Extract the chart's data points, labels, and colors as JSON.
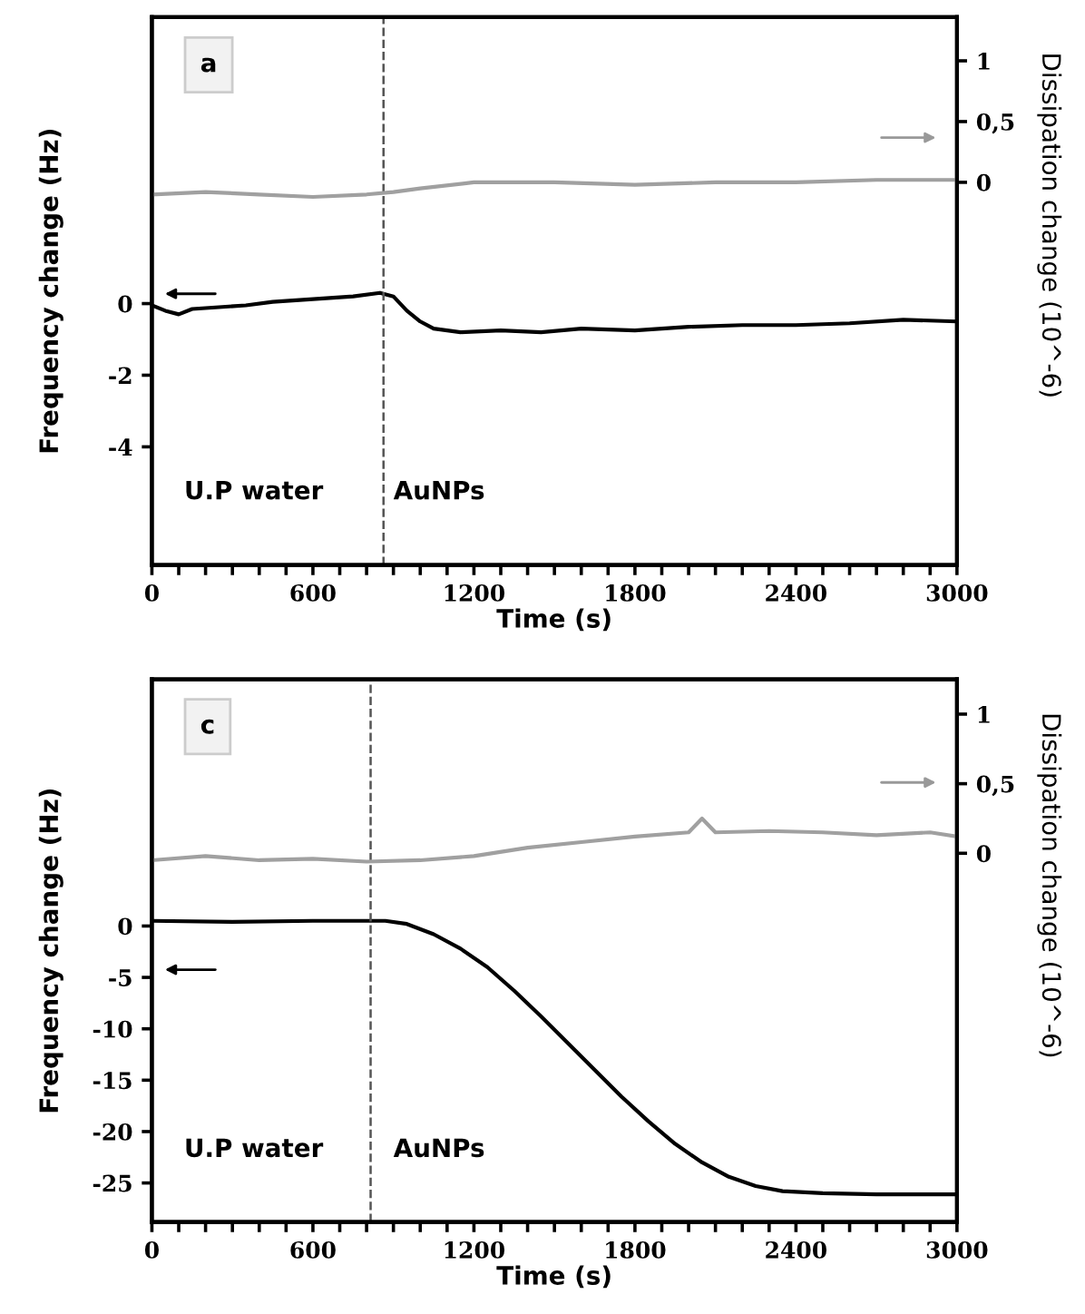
{
  "chart_data": [
    {
      "type": "line",
      "xlabel": "Time (s)",
      "ylabel": "Frequency change (Hz)",
      "y2label": "Dissipation change (10^-6)",
      "annotations": [
        "a",
        "U.P water",
        "AuNPs"
      ],
      "ref_lines": [
        {
          "axis": "x",
          "value": 863,
          "color": "#555555",
          "line_style": "dashed"
        }
      ],
      "xlim": [
        0,
        3000
      ],
      "xticks": [
        0,
        {
          "value": 100,
          "label": null
        },
        {
          "value": 200,
          "label": null
        },
        {
          "value": 300,
          "label": null
        },
        {
          "value": 400,
          "label": null
        },
        {
          "value": 500,
          "label": null
        },
        600,
        {
          "value": 700,
          "label": null
        },
        {
          "value": 800,
          "label": null
        },
        {
          "value": 900,
          "label": null
        },
        {
          "value": 1000,
          "label": null
        },
        {
          "value": 1100,
          "label": null
        },
        1200,
        {
          "value": 1300,
          "label": null
        },
        {
          "value": 1400,
          "label": null
        },
        {
          "value": 1500,
          "label": null
        },
        {
          "value": 1600,
          "label": null
        },
        {
          "value": 1700,
          "label": null
        },
        1800,
        {
          "value": 1900,
          "label": null
        },
        {
          "value": 2000,
          "label": null
        },
        {
          "value": 2100,
          "label": null
        },
        {
          "value": 2200,
          "label": null
        },
        {
          "value": 2300,
          "label": null
        },
        2400,
        {
          "value": 2500,
          "label": null
        },
        {
          "value": 2600,
          "label": null
        },
        {
          "value": 2700,
          "label": null
        },
        {
          "value": 2800,
          "label": null
        },
        {
          "value": 2900,
          "label": null
        },
        3000
      ],
      "ylim": [
        -7.3,
        8.0
      ],
      "yticks": [
        -4,
        -2,
        0
      ],
      "y2lim": [
        -3.15,
        1.36
      ],
      "y2ticks": [
        0,
        {
          "value": 0.5,
          "label": "0,5"
        },
        1
      ],
      "series": [
        {
          "color": "#000000",
          "x": [
            0,
            50,
            100,
            150,
            250,
            350,
            450,
            550,
            650,
            750,
            850,
            900,
            950,
            1000,
            1050,
            1150,
            1300,
            1450,
            1600,
            1800,
            2000,
            2200,
            2400,
            2600,
            2800,
            3000
          ],
          "values": [
            -0.05,
            -0.2,
            -0.3,
            -0.15,
            -0.1,
            -0.05,
            0.05,
            0.1,
            0.15,
            0.2,
            0.3,
            0.2,
            -0.2,
            -0.5,
            -0.7,
            -0.8,
            -0.75,
            -0.8,
            -0.7,
            -0.75,
            -0.65,
            -0.6,
            -0.6,
            -0.55,
            -0.45,
            -0.5
          ]
        },
        {
          "color": "#a0a0a0",
          "axis": "y2",
          "x": [
            0,
            200,
            400,
            600,
            800,
            900,
            1000,
            1200,
            1500,
            1800,
            2100,
            2400,
            2700,
            3000
          ],
          "values": [
            -0.1,
            -0.08,
            -0.1,
            -0.12,
            -0.1,
            -0.08,
            -0.05,
            0,
            0,
            -0.02,
            0,
            0,
            0.02,
            0.02
          ]
        }
      ]
    },
    {
      "type": "line",
      "xlabel": "Time (s)",
      "ylabel": "Frequency change (Hz)",
      "y2label": "Dissipation change (10^-6)",
      "annotations": [
        "c",
        "U.P water",
        "AuNPs"
      ],
      "ref_lines": [
        {
          "axis": "x",
          "value": 815,
          "color": "#555555",
          "line_style": "dashed"
        }
      ],
      "xlim": [
        0,
        3000
      ],
      "xticks": [
        0,
        {
          "value": 100,
          "label": null
        },
        {
          "value": 200,
          "label": null
        },
        {
          "value": 300,
          "label": null
        },
        {
          "value": 400,
          "label": null
        },
        {
          "value": 500,
          "label": null
        },
        600,
        {
          "value": 700,
          "label": null
        },
        {
          "value": 800,
          "label": null
        },
        {
          "value": 900,
          "label": null
        },
        {
          "value": 1000,
          "label": null
        },
        {
          "value": 1100,
          "label": null
        },
        1200,
        {
          "value": 1300,
          "label": null
        },
        {
          "value": 1400,
          "label": null
        },
        {
          "value": 1500,
          "label": null
        },
        {
          "value": 1600,
          "label": null
        },
        {
          "value": 1700,
          "label": null
        },
        1800,
        {
          "value": 1900,
          "label": null
        },
        {
          "value": 2000,
          "label": null
        },
        {
          "value": 2100,
          "label": null
        },
        {
          "value": 2200,
          "label": null
        },
        {
          "value": 2300,
          "label": null
        },
        2400,
        {
          "value": 2500,
          "label": null
        },
        {
          "value": 2600,
          "label": null
        },
        {
          "value": 2700,
          "label": null
        },
        {
          "value": 2800,
          "label": null
        },
        {
          "value": 2900,
          "label": null
        },
        3000
      ],
      "ylim": [
        -28.8,
        24.0
      ],
      "yticks": [
        -25,
        -20,
        -15,
        -10,
        -5,
        0
      ],
      "y2lim": [
        -2.65,
        1.25
      ],
      "y2ticks": [
        0,
        {
          "value": 0.5,
          "label": "0,5"
        },
        1
      ],
      "series": [
        {
          "color": "#000000",
          "x": [
            0,
            300,
            600,
            870,
            950,
            1050,
            1150,
            1250,
            1350,
            1450,
            1550,
            1650,
            1750,
            1850,
            1950,
            2050,
            2150,
            2250,
            2350,
            2500,
            2700,
            3000
          ],
          "values": [
            0.5,
            0.4,
            0.5,
            0.5,
            0.2,
            -0.8,
            -2.2,
            -4,
            -6.3,
            -8.8,
            -11.4,
            -14,
            -16.6,
            -19,
            -21.2,
            -23,
            -24.4,
            -25.3,
            -25.8,
            -26.0,
            -26.1,
            -26.1
          ]
        },
        {
          "color": "#a0a0a0",
          "axis": "y2",
          "x": [
            0,
            200,
            400,
            600,
            800,
            1000,
            1200,
            1400,
            1600,
            1800,
            2000,
            2050,
            2100,
            2300,
            2500,
            2700,
            2900,
            3000
          ],
          "values": [
            -0.05,
            -0.02,
            -0.05,
            -0.04,
            -0.06,
            -0.05,
            -0.02,
            0.04,
            0.08,
            0.12,
            0.15,
            0.25,
            0.15,
            0.16,
            0.15,
            0.13,
            0.15,
            0.12
          ]
        }
      ]
    }
  ]
}
